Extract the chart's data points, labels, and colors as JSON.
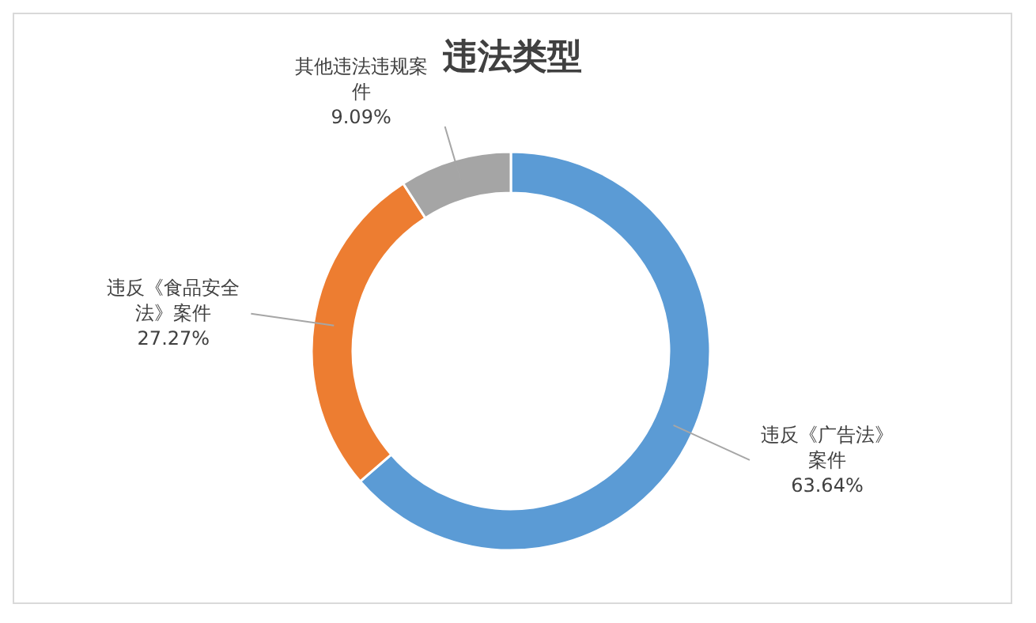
{
  "chart_data": {
    "type": "donut",
    "title": "违法类型",
    "categories": [
      "违反《广告法》案件",
      "违反《食品安全法》案件",
      "其他违法违规案件"
    ],
    "values": [
      63.64,
      27.27,
      9.09
    ],
    "value_labels": [
      "63.64%",
      "27.27%",
      "9.09%"
    ],
    "colors": [
      "#5b9bd5",
      "#ed7d31",
      "#a5a5a5"
    ],
    "legend": false
  }
}
